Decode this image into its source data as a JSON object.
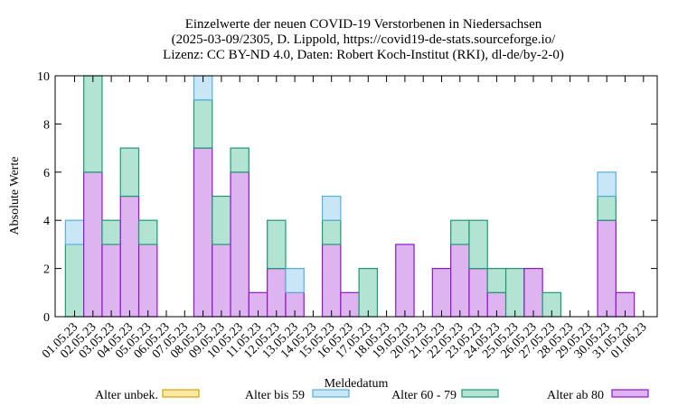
{
  "chart_data": {
    "type": "bar",
    "stacked": true,
    "title_lines": [
      "Einzelwerte der neuen COVID-19 Verstorbenen in Niedersachsen",
      "(2025-03-09/2305, D. Lippold, https://covid19-de-stats.sourceforge.io/",
      "Lizenz: CC BY-ND 4.0, Daten: Robert Koch-Institut (RKI), dl-de/by-2-0)"
    ],
    "xlabel": "Meldedatum",
    "ylabel": "Absolute Werte",
    "ylim": [
      0,
      10
    ],
    "yticks": [
      0,
      2,
      4,
      6,
      8,
      10
    ],
    "grid": false,
    "legend_position": "bottom",
    "categories": [
      "01.05.23",
      "02.05.23",
      "03.05.23",
      "04.05.23",
      "05.05.23",
      "06.05.23",
      "07.05.23",
      "08.05.23",
      "09.05.23",
      "10.05.23",
      "11.05.23",
      "12.05.23",
      "13.05.23",
      "14.05.23",
      "15.05.23",
      "16.05.23",
      "17.05.23",
      "18.05.23",
      "19.05.23",
      "20.05.23",
      "21.05.23",
      "22.05.23",
      "23.05.23",
      "24.05.23",
      "25.05.23",
      "26.05.23",
      "27.05.23",
      "28.05.23",
      "29.05.23",
      "30.05.23",
      "31.05.23",
      "01.06.23"
    ],
    "series": [
      {
        "name": "Alter unbek.",
        "fill": "#fde8a8",
        "stroke": "#d8a100",
        "values": [
          0,
          0,
          0,
          0,
          0,
          0,
          0,
          0,
          0,
          0,
          0,
          0,
          0,
          0,
          0,
          0,
          0,
          0,
          0,
          0,
          0,
          0,
          0,
          0,
          0,
          0,
          0,
          0,
          0,
          0,
          0,
          0
        ]
      },
      {
        "name": "Alter bis 59",
        "fill": "#c8e6f5",
        "stroke": "#5aaedb",
        "values": [
          1,
          0,
          0,
          0,
          0,
          0,
          0,
          1,
          0,
          0,
          0,
          0,
          1,
          0,
          1,
          0,
          0,
          0,
          0,
          0,
          0,
          0,
          0,
          0,
          0,
          0,
          0,
          0,
          0,
          1,
          0,
          0
        ]
      },
      {
        "name": "Alter 60 - 79",
        "fill": "#b3e3d3",
        "stroke": "#1f9a70",
        "values": [
          3,
          4,
          1,
          2,
          1,
          0,
          0,
          2,
          2,
          1,
          0,
          2,
          0,
          0,
          1,
          0,
          2,
          0,
          0,
          0,
          0,
          1,
          2,
          1,
          2,
          0,
          1,
          0,
          0,
          1,
          0,
          0
        ]
      },
      {
        "name": "Alter ab 80",
        "fill": "#ddb3f0",
        "stroke": "#8f16c7",
        "values": [
          0,
          6,
          3,
          5,
          3,
          0,
          0,
          7,
          3,
          6,
          1,
          2,
          1,
          0,
          3,
          1,
          0,
          0,
          3,
          0,
          2,
          3,
          2,
          1,
          0,
          2,
          0,
          0,
          0,
          4,
          1,
          0
        ]
      }
    ]
  }
}
